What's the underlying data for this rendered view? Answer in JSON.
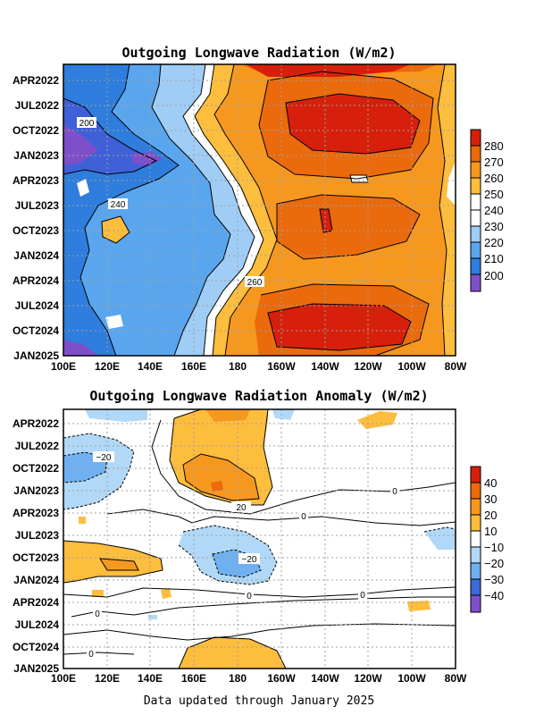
{
  "chart_data": [
    {
      "type": "heatmap",
      "title": "Outgoing Longwave Radiation (W/m2)",
      "x_ticks": [
        "100E",
        "120E",
        "140E",
        "160E",
        "180",
        "160W",
        "140W",
        "120W",
        "100W",
        "80W"
      ],
      "y_ticks": [
        "APR2022",
        "JUL2022",
        "OCT2022",
        "JAN2023",
        "APR2023",
        "JUL2023",
        "OCT2023",
        "JAN2024",
        "APR2024",
        "JUL2024",
        "OCT2024",
        "JAN2025"
      ],
      "colorbar": [
        "200",
        "210",
        "220",
        "230",
        "240",
        "250",
        "260",
        "270",
        "280"
      ],
      "contour_labels": [
        "200",
        "240",
        "260"
      ],
      "colors": {
        "l190": "#7f4fc9",
        "l200": "#4060d8",
        "l210": "#2f7ddc",
        "l220": "#5aa6ee",
        "l230": "#9fcdf6",
        "l240": "#ffffff",
        "l250": "#fdbd3d",
        "l260": "#f7981e",
        "l270": "#ea6a0c",
        "l280": "#d6200c"
      }
    },
    {
      "type": "heatmap",
      "title": "Outgoing Longwave Radiation Anomaly (W/m2)",
      "x_ticks": [
        "100E",
        "120E",
        "140E",
        "160E",
        "180",
        "160W",
        "140W",
        "120W",
        "100W",
        "80W"
      ],
      "y_ticks": [
        "APR2022",
        "JUL2022",
        "OCT2022",
        "JAN2023",
        "APR2023",
        "JUL2023",
        "OCT2023",
        "JAN2024",
        "APR2024",
        "JUL2024",
        "OCT2024",
        "JAN2025"
      ],
      "colorbar": [
        "−40",
        "−30",
        "−20",
        "−10",
        "10",
        "20",
        "30",
        "40"
      ],
      "contour_labels": [
        "−20",
        "20",
        "0",
        "0",
        "−20",
        "0",
        "0",
        "0",
        "0"
      ],
      "colors": {
        "n40": "#7f4fc9",
        "n30": "#3c6ad8",
        "n20": "#6fb1f0",
        "n10": "#b1d8f7",
        "zero": "#ffffff",
        "p10": "#ffffff",
        "p20": "#fdbd3d",
        "p30": "#f7981e",
        "p40": "#ea6a0c",
        "p50": "#d6200c"
      }
    }
  ],
  "footer": "Data updated through January 2025"
}
